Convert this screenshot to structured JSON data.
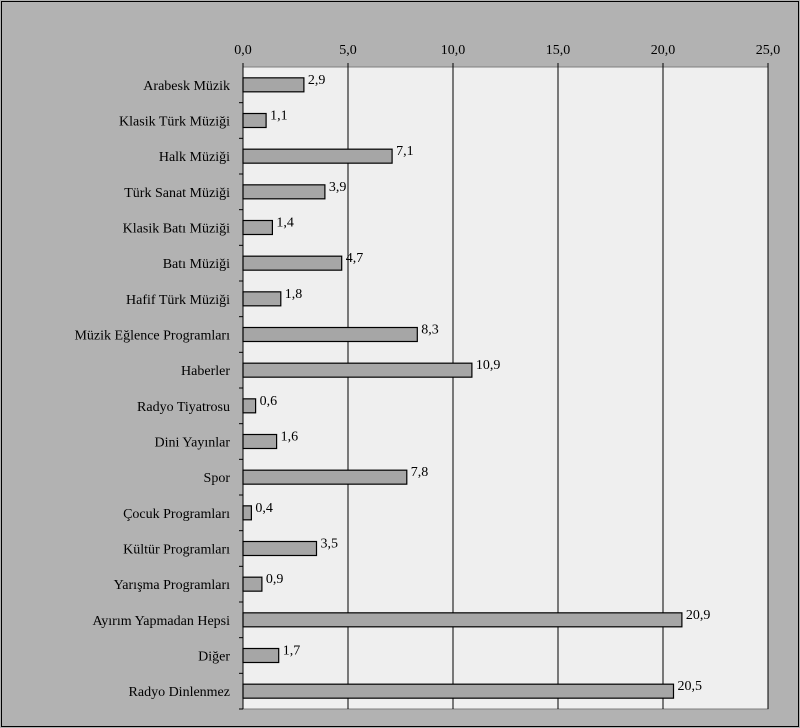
{
  "chart_data": {
    "type": "bar",
    "orientation": "horizontal",
    "categories": [
      "Arabesk Müzik",
      "Klasik Türk Müziği",
      "Halk Müziği",
      "Türk Sanat Müziği",
      "Klasik Batı Müziği",
      "Batı Müziği",
      "Hafif Türk Müziği",
      "Müzik Eğlence Programları",
      "Haberler",
      "Radyo Tiyatrosu",
      "Dini Yayınlar",
      "Spor",
      "Çocuk Programları",
      "Kültür Programları",
      "Yarışma Programları",
      "Ayırım Yapmadan Hepsi",
      "Diğer",
      "Radyo Dinlenmez"
    ],
    "values": [
      2.9,
      1.1,
      7.1,
      3.9,
      1.4,
      4.7,
      1.8,
      8.3,
      10.9,
      0.6,
      1.6,
      7.8,
      0.4,
      3.5,
      0.9,
      20.9,
      1.7,
      20.5
    ],
    "value_labels": [
      "2,9",
      "1,1",
      "7,1",
      "3,9",
      "1,4",
      "4,7",
      "1,8",
      "8,3",
      "10,9",
      "0,6",
      "1,6",
      "7,8",
      "0,4",
      "3,5",
      "0,9",
      "20,9",
      "1,7",
      "20,5"
    ],
    "xlim": [
      0,
      25
    ],
    "x_ticks": [
      0,
      5,
      10,
      15,
      20,
      25
    ],
    "x_tick_labels": [
      "0,0",
      "5,0",
      "10,0",
      "15,0",
      "20,0",
      "25,0"
    ],
    "x_axis_position": "top",
    "grid": true,
    "legend": false,
    "title": "",
    "xlabel": "",
    "ylabel": "",
    "colors": {
      "bar_fill": "#a6a6a6",
      "bar_stroke": "#000000",
      "plot_background": "#efefef",
      "chart_background": "#b2b2b2",
      "gridline": "#000000"
    }
  }
}
